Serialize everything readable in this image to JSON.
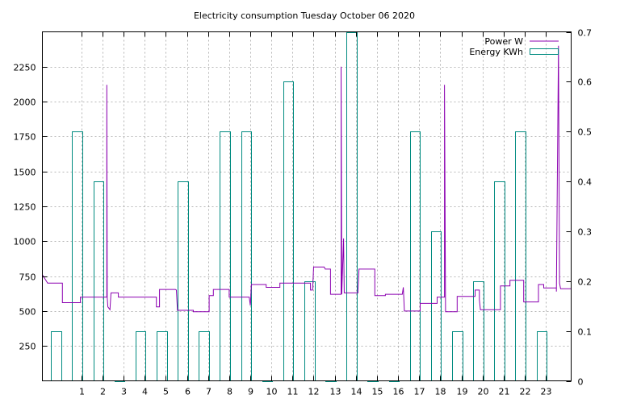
{
  "chart_data": {
    "type": "line",
    "title": "Electricity consumption Tuesday October 06 2020",
    "xlabel": "",
    "ylabel": "",
    "y2label": "",
    "grid": true,
    "legend_position": "top-right",
    "xlim": [
      -0.85,
      24.2
    ],
    "ylim": [
      0,
      2500
    ],
    "y2lim": [
      0,
      0.7
    ],
    "x_ticks": [
      1,
      2,
      3,
      4,
      5,
      6,
      7,
      8,
      9,
      10,
      11,
      12,
      13,
      14,
      15,
      16,
      17,
      18,
      19,
      20,
      21,
      22,
      23
    ],
    "y_ticks": [
      250,
      500,
      750,
      1000,
      1250,
      1500,
      1750,
      2000,
      2250
    ],
    "y2_ticks": [
      0,
      0.1,
      0.2,
      0.3,
      0.4,
      0.5,
      0.6,
      0.7
    ],
    "series": [
      {
        "name": "Power W",
        "color": "#8b00b0",
        "axis": "left",
        "style": "step",
        "points": [
          [
            -0.85,
            760
          ],
          [
            -0.6,
            700
          ],
          [
            0.1,
            700
          ],
          [
            0.1,
            560
          ],
          [
            0.95,
            560
          ],
          [
            0.95,
            600
          ],
          [
            2.2,
            600
          ],
          [
            2.2,
            2120
          ],
          [
            2.22,
            600
          ],
          [
            2.25,
            530
          ],
          [
            2.35,
            510
          ],
          [
            2.4,
            630
          ],
          [
            2.75,
            630
          ],
          [
            2.75,
            600
          ],
          [
            4.55,
            600
          ],
          [
            4.55,
            530
          ],
          [
            4.7,
            530
          ],
          [
            4.7,
            655
          ],
          [
            5.45,
            655
          ],
          [
            5.5,
            650
          ],
          [
            5.55,
            505
          ],
          [
            6.3,
            505
          ],
          [
            6.3,
            495
          ],
          [
            7.05,
            495
          ],
          [
            7.05,
            610
          ],
          [
            7.25,
            610
          ],
          [
            7.25,
            655
          ],
          [
            8.0,
            655
          ],
          [
            8.0,
            600
          ],
          [
            8.95,
            600
          ],
          [
            9.0,
            540
          ],
          [
            9.05,
            690
          ],
          [
            9.75,
            690
          ],
          [
            9.75,
            670
          ],
          [
            10.4,
            670
          ],
          [
            10.4,
            700
          ],
          [
            11.85,
            700
          ],
          [
            11.85,
            650
          ],
          [
            11.95,
            650
          ],
          [
            12.0,
            815
          ],
          [
            12.5,
            815
          ],
          [
            12.55,
            800
          ],
          [
            12.8,
            800
          ],
          [
            12.8,
            620
          ],
          [
            13.3,
            620
          ],
          [
            13.3,
            2250
          ],
          [
            13.33,
            620
          ],
          [
            13.42,
            1020
          ],
          [
            13.45,
            630
          ],
          [
            14.1,
            630
          ],
          [
            14.1,
            650
          ],
          [
            14.15,
            800
          ],
          [
            14.9,
            800
          ],
          [
            14.9,
            610
          ],
          [
            15.4,
            610
          ],
          [
            15.4,
            620
          ],
          [
            16.2,
            620
          ],
          [
            16.25,
            670
          ],
          [
            16.3,
            500
          ],
          [
            17.05,
            500
          ],
          [
            17.05,
            555
          ],
          [
            17.85,
            555
          ],
          [
            17.85,
            600
          ],
          [
            18.2,
            600
          ],
          [
            18.2,
            2120
          ],
          [
            18.25,
            495
          ],
          [
            18.8,
            495
          ],
          [
            18.8,
            605
          ],
          [
            19.65,
            605
          ],
          [
            19.65,
            650
          ],
          [
            19.85,
            650
          ],
          [
            19.85,
            580
          ],
          [
            19.9,
            510
          ],
          [
            20.85,
            510
          ],
          [
            20.85,
            680
          ],
          [
            21.3,
            680
          ],
          [
            21.3,
            720
          ],
          [
            21.95,
            720
          ],
          [
            21.95,
            565
          ],
          [
            22.65,
            565
          ],
          [
            22.65,
            690
          ],
          [
            22.9,
            690
          ],
          [
            22.9,
            665
          ],
          [
            23.5,
            665
          ],
          [
            23.5,
            640
          ],
          [
            23.6,
            2400
          ],
          [
            23.65,
            700
          ],
          [
            23.7,
            660
          ],
          [
            24.2,
            660
          ]
        ]
      },
      {
        "name": "Energy KWh",
        "color": "#008b80",
        "axis": "right",
        "style": "boxes",
        "x": [
          -0.2,
          0.8,
          1.8,
          2.8,
          3.8,
          4.8,
          5.8,
          6.8,
          7.8,
          8.8,
          9.8,
          10.8,
          11.8,
          12.8,
          13.8,
          14.8,
          15.8,
          16.8,
          17.8,
          18.8,
          19.8,
          20.8,
          21.8,
          22.8
        ],
        "values": [
          0.1,
          0.5,
          0.4,
          0.0,
          0.1,
          0.1,
          0.4,
          0.1,
          0.5,
          0.5,
          0.0,
          0.6,
          0.2,
          0.0,
          0.7,
          0.0,
          0.0,
          0.5,
          0.3,
          0.1,
          0.2,
          0.4,
          0.5,
          0.1
        ],
        "box_width": 0.48
      }
    ]
  }
}
